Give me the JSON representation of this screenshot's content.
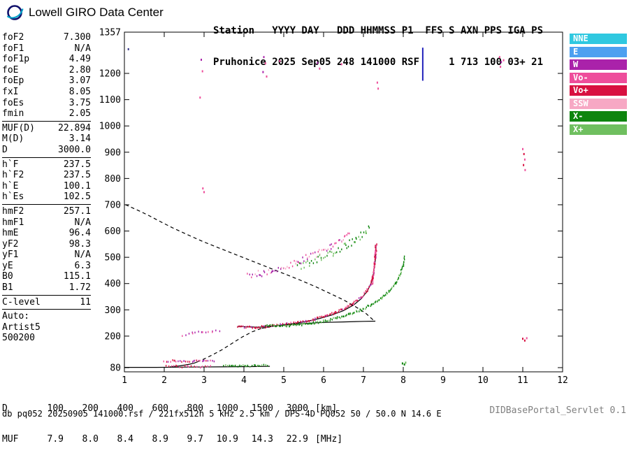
{
  "header": {
    "logo_text": "Lowell GIRO Data Center",
    "line1": "Station   YYYY DAY   DDD HHMMSS P1  FFS S AXN PPS IGA PS",
    "line2": "Pruhonice 2025 Sep05 248 141000 RSF     1 713 100 03+ 21"
  },
  "params": {
    "groups": [
      {
        "rows": [
          [
            "foF2",
            "7.300"
          ],
          [
            "foF1",
            "N/A"
          ],
          [
            "foF1p",
            "4.49"
          ],
          [
            "foE",
            "2.80"
          ],
          [
            "foEp",
            "3.07"
          ],
          [
            "fxI",
            "8.05"
          ],
          [
            "foEs",
            "3.75"
          ],
          [
            "fmin",
            "2.05"
          ]
        ]
      },
      {
        "rows": [
          [
            "MUF(D)",
            "22.894"
          ],
          [
            "M(D)",
            "3.14"
          ],
          [
            "D",
            "3000.0"
          ]
        ]
      },
      {
        "rows": [
          [
            "h`F",
            "237.5"
          ],
          [
            "h`F2",
            "237.5"
          ],
          [
            "h`E",
            "100.1"
          ],
          [
            "h`Es",
            "102.5"
          ]
        ]
      },
      {
        "rows": [
          [
            "hmF2",
            "257.1"
          ],
          [
            "hmF1",
            "N/A"
          ],
          [
            "hmE",
            "96.4"
          ],
          [
            "yF2",
            "98.3"
          ],
          [
            "yF1",
            "N/A"
          ],
          [
            "yE",
            "6.3"
          ],
          [
            "B0",
            "115.1"
          ],
          [
            "B1",
            "1.72"
          ]
        ]
      },
      {
        "rows": [
          [
            "C-level",
            "11"
          ]
        ]
      },
      {
        "rows": [
          [
            "Auto:",
            ""
          ],
          [
            "Artist5",
            ""
          ],
          [
            "500200",
            ""
          ]
        ]
      }
    ]
  },
  "legend": {
    "items": [
      {
        "label": "NNE",
        "color": "#2FC8E0"
      },
      {
        "label": "E",
        "color": "#4DA0F0"
      },
      {
        "label": "W",
        "color": "#AA22AA"
      },
      {
        "label": "Vo-",
        "color": "#EE4E9B"
      },
      {
        "label": "Vo+",
        "color": "#D81040"
      },
      {
        "label": "SSW",
        "color": "#F7A8C4"
      },
      {
        "label": "X-",
        "color": "#0E850E"
      },
      {
        "label": "X+",
        "color": "#6FBF5F"
      }
    ]
  },
  "muf_table": {
    "row1_label": "D",
    "row2_label": "MUF",
    "d_values": [
      "100",
      "200",
      "400",
      "600",
      "800",
      "1000",
      "1500",
      "3000"
    ],
    "muf_values": [
      "7.9",
      "8.0",
      "8.4",
      "8.9",
      "9.7",
      "10.9",
      "14.3",
      "22.9"
    ],
    "d_unit": "[km]",
    "muf_unit": "[MHz]"
  },
  "footer": {
    "info": "db pq052 20250905 141000.rsf / 221fx512h 5 kHz 2.5 km / DPS-4D PQ052 50 / 50.0 N 14.6 E",
    "servlet": "DIDBasePortal_Servlet 0.1"
  },
  "chart_data": {
    "type": "scatter",
    "x_unit": "MHz",
    "y_unit": "km",
    "xlim": [
      1,
      12
    ],
    "ylim": [
      80,
      1357
    ],
    "x_ticks": [
      1,
      2,
      3,
      4,
      5,
      6,
      7,
      8,
      9,
      10,
      11,
      12
    ],
    "y_ticks": [
      80,
      200,
      300,
      400,
      500,
      600,
      700,
      800,
      900,
      1000,
      1100,
      1200,
      1357
    ],
    "grid": false,
    "curves": [
      {
        "name": "baseline",
        "style": "solid",
        "width": 1.2,
        "points": [
          [
            1.0,
            81
          ],
          [
            1.8,
            81
          ],
          [
            2.6,
            82
          ],
          [
            3.4,
            83
          ],
          [
            4.2,
            84
          ],
          [
            4.65,
            85
          ]
        ]
      },
      {
        "name": "profile-e",
        "style": "solid",
        "width": 1.2,
        "points": [
          [
            2.15,
            83
          ],
          [
            2.4,
            87
          ],
          [
            2.6,
            92
          ],
          [
            2.75,
            97
          ],
          [
            2.82,
            101
          ]
        ]
      },
      {
        "name": "profile-valley",
        "style": "dashed",
        "width": 1.2,
        "points": [
          [
            2.82,
            101
          ],
          [
            3.0,
            113
          ],
          [
            3.2,
            128
          ],
          [
            3.45,
            148
          ],
          [
            3.7,
            172
          ],
          [
            3.95,
            196
          ],
          [
            4.2,
            216
          ],
          [
            4.45,
            230
          ]
        ]
      },
      {
        "name": "profile-f",
        "style": "solid",
        "width": 1.2,
        "points": [
          [
            4.45,
            230
          ],
          [
            4.8,
            239
          ],
          [
            5.2,
            245
          ],
          [
            5.6,
            249
          ],
          [
            6.0,
            252
          ],
          [
            6.5,
            254
          ],
          [
            7.0,
            256
          ],
          [
            7.3,
            257
          ]
        ]
      },
      {
        "name": "model-o-trace",
        "style": "solid",
        "width": 1.2,
        "points": [
          [
            3.85,
            237
          ],
          [
            4.1,
            235
          ],
          [
            4.4,
            234
          ],
          [
            4.7,
            238
          ],
          [
            5.0,
            243
          ],
          [
            5.3,
            249
          ],
          [
            5.6,
            257
          ],
          [
            5.9,
            267
          ],
          [
            6.2,
            280
          ],
          [
            6.5,
            297
          ],
          [
            6.75,
            318
          ],
          [
            6.95,
            343
          ],
          [
            7.1,
            372
          ],
          [
            7.2,
            404
          ],
          [
            7.26,
            442
          ],
          [
            7.3,
            490
          ],
          [
            7.32,
            548
          ]
        ]
      },
      {
        "name": "topside-profile",
        "style": "dashed",
        "width": 1.2,
        "points": [
          [
            7.24,
            262
          ],
          [
            7.05,
            288
          ],
          [
            6.8,
            312
          ],
          [
            6.5,
            338
          ],
          [
            6.15,
            363
          ],
          [
            5.8,
            388
          ],
          [
            5.4,
            414
          ],
          [
            5.0,
            438
          ],
          [
            4.6,
            462
          ],
          [
            4.2,
            486
          ],
          [
            3.8,
            510
          ],
          [
            3.4,
            534
          ],
          [
            3.0,
            558
          ],
          [
            2.6,
            585
          ],
          [
            2.2,
            613
          ],
          [
            1.9,
            636
          ],
          [
            1.6,
            660
          ],
          [
            1.35,
            678
          ],
          [
            1.15,
            692
          ],
          [
            1.03,
            700
          ]
        ]
      },
      {
        "name": "interference-line",
        "style": "solid",
        "width": 2,
        "color": "#2222BB",
        "points": [
          [
            8.49,
            1172
          ],
          [
            8.49,
            1298
          ]
        ]
      }
    ],
    "traces": [
      {
        "name": "f-trace-o",
        "spacing": 2,
        "jitter": 1.6,
        "colors": [
          "#D81040",
          "#D81040",
          "#D81040",
          "#EE4E9B",
          "#AA22AA"
        ],
        "points": [
          [
            3.85,
            238
          ],
          [
            4.05,
            235
          ],
          [
            4.3,
            234
          ],
          [
            4.55,
            236
          ],
          [
            4.8,
            240
          ],
          [
            5.05,
            244
          ],
          [
            5.3,
            250
          ],
          [
            5.55,
            257
          ],
          [
            5.8,
            265
          ],
          [
            6.05,
            276
          ],
          [
            6.3,
            289
          ],
          [
            6.55,
            306
          ],
          [
            6.75,
            324
          ],
          [
            6.95,
            348
          ],
          [
            7.1,
            375
          ],
          [
            7.2,
            405
          ],
          [
            7.26,
            440
          ],
          [
            7.29,
            478
          ],
          [
            7.31,
            515
          ],
          [
            7.33,
            548
          ]
        ]
      },
      {
        "name": "f-trace-o-spread",
        "spacing": 1.6,
        "jitter": 3,
        "colors": [
          "#D81040",
          "#EE4E9B"
        ],
        "points": [
          [
            7.22,
            400
          ],
          [
            7.26,
            450
          ],
          [
            7.29,
            500
          ],
          [
            7.31,
            545
          ]
        ]
      },
      {
        "name": "f-trace-x",
        "spacing": 2,
        "jitter": 1.5,
        "colors": [
          "#0E850E",
          "#0E850E",
          "#0E850E",
          "#6FBF5F"
        ],
        "points": [
          [
            4.55,
            239
          ],
          [
            4.85,
            238
          ],
          [
            5.15,
            240
          ],
          [
            5.45,
            244
          ],
          [
            5.75,
            250
          ],
          [
            6.05,
            258
          ],
          [
            6.35,
            269
          ],
          [
            6.65,
            283
          ],
          [
            6.95,
            300
          ],
          [
            7.2,
            320
          ],
          [
            7.45,
            345
          ],
          [
            7.65,
            372
          ],
          [
            7.82,
            402
          ],
          [
            7.93,
            438
          ],
          [
            8.0,
            470
          ],
          [
            8.04,
            500
          ]
        ]
      },
      {
        "name": "second-trace-o",
        "spacing": 2.6,
        "jitter": 5,
        "colors": [
          "#EE4E9B",
          "#F7A8C4",
          "#AA22AA"
        ],
        "points": [
          [
            4.1,
            425
          ],
          [
            4.4,
            438
          ],
          [
            4.7,
            452
          ],
          [
            5.0,
            466
          ],
          [
            5.3,
            482
          ],
          [
            5.6,
            500
          ],
          [
            5.9,
            520
          ],
          [
            6.2,
            543
          ],
          [
            6.45,
            566
          ],
          [
            6.65,
            590
          ]
        ]
      },
      {
        "name": "second-trace-x",
        "spacing": 2.6,
        "jitter": 5,
        "colors": [
          "#6FBF5F",
          "#0E850E"
        ],
        "points": [
          [
            5.35,
            465
          ],
          [
            5.65,
            480
          ],
          [
            5.95,
            498
          ],
          [
            6.25,
            518
          ],
          [
            6.55,
            542
          ],
          [
            6.8,
            568
          ],
          [
            7.05,
            596
          ],
          [
            7.15,
            612
          ]
        ]
      },
      {
        "name": "es-trace",
        "spacing": 3,
        "jitter": 1.4,
        "colors": [
          "#EE4E9B",
          "#D81040",
          "#AA22AA"
        ],
        "points": [
          [
            2.0,
            106
          ],
          [
            2.25,
            105
          ],
          [
            2.5,
            105
          ],
          [
            2.75,
            104
          ],
          [
            3.0,
            104
          ],
          [
            3.25,
            105
          ]
        ]
      },
      {
        "name": "es-trace-upper",
        "spacing": 5,
        "jitter": 2,
        "colors": [
          "#EE4E9B",
          "#AA22AA"
        ],
        "points": [
          [
            2.45,
            204
          ],
          [
            2.7,
            209
          ],
          [
            2.95,
            213
          ],
          [
            3.2,
            218
          ],
          [
            3.4,
            222
          ]
        ]
      },
      {
        "name": "es-x-trace",
        "spacing": 2.6,
        "jitter": 1.3,
        "colors": [
          "#0E850E",
          "#0E850E",
          "#6FBF5F"
        ],
        "points": [
          [
            3.5,
            87
          ],
          [
            3.8,
            86
          ],
          [
            4.1,
            86
          ],
          [
            4.35,
            87
          ],
          [
            4.6,
            88
          ]
        ]
      },
      {
        "name": "fmin-dots",
        "spacing": 4,
        "jitter": 1.5,
        "colors": [
          "#D81040",
          "#EE4E9B"
        ],
        "points": [
          [
            2.05,
            85
          ],
          [
            2.3,
            85
          ],
          [
            2.6,
            84
          ],
          [
            2.9,
            84
          ],
          [
            3.15,
            85
          ]
        ]
      }
    ],
    "noise": [
      [
        2.93,
        1252,
        "#AA22AA"
      ],
      [
        2.96,
        1208,
        "#EE4E9B"
      ],
      [
        2.9,
        1108,
        "#EE4E9B"
      ],
      [
        4.5,
        1262,
        "#AA22AA"
      ],
      [
        4.54,
        1238,
        "#EE4E9B"
      ],
      [
        4.48,
        1205,
        "#AA22AA"
      ],
      [
        4.57,
        1188,
        "#EE4E9B"
      ],
      [
        4.9,
        1247,
        "#EE4E9B"
      ],
      [
        5.85,
        1240,
        "#AA22AA"
      ],
      [
        5.9,
        1218,
        "#EE4E9B"
      ],
      [
        6.45,
        1235,
        "#EE4E9B"
      ],
      [
        7.35,
        1165,
        "#EE4E9B"
      ],
      [
        7.37,
        1142,
        "#EE4E9B"
      ],
      [
        10.42,
        1262,
        "#EE4E9B"
      ],
      [
        10.46,
        1243,
        "#AA22AA"
      ],
      [
        10.44,
        1225,
        "#EE4E9B"
      ],
      [
        10.52,
        1250,
        "#EE4E9B"
      ],
      [
        11.0,
        912,
        "#EE4E9B"
      ],
      [
        11.03,
        893,
        "#D81040"
      ],
      [
        11.05,
        872,
        "#EE4E9B"
      ],
      [
        11.02,
        851,
        "#D81040"
      ],
      [
        11.06,
        832,
        "#EE4E9B"
      ],
      [
        11.0,
        190,
        "#D81040"
      ],
      [
        11.05,
        183,
        "#D81040"
      ],
      [
        11.1,
        192,
        "#EE4E9B"
      ],
      [
        7.98,
        96,
        "#0E850E"
      ],
      [
        8.03,
        92,
        "#0E850E"
      ],
      [
        8.06,
        99,
        "#6FBF5F"
      ],
      [
        2.97,
        762,
        "#EE4E9B"
      ],
      [
        3.0,
        748,
        "#EE4E9B"
      ],
      [
        1.1,
        1292,
        "#333388"
      ]
    ]
  }
}
